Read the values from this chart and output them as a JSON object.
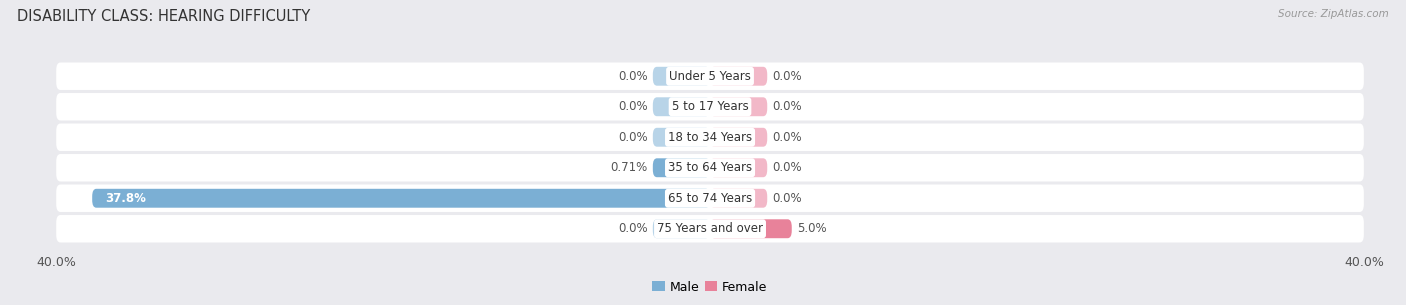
{
  "title": "DISABILITY CLASS: HEARING DIFFICULTY",
  "source": "Source: ZipAtlas.com",
  "categories": [
    "Under 5 Years",
    "5 to 17 Years",
    "18 to 34 Years",
    "35 to 64 Years",
    "65 to 74 Years",
    "75 Years and over"
  ],
  "male_values": [
    0.0,
    0.0,
    0.0,
    0.71,
    37.8,
    0.0
  ],
  "female_values": [
    0.0,
    0.0,
    0.0,
    0.0,
    0.0,
    5.0
  ],
  "male_color": "#7bafd4",
  "female_color": "#e8829a",
  "male_stub_color": "#b8d4e8",
  "female_stub_color": "#f2b8c8",
  "row_bg_color": "#ffffff",
  "outer_bg_color": "#eaeaee",
  "axis_max": 40.0,
  "bar_height": 0.62,
  "stub_size": 3.5,
  "title_fontsize": 10.5,
  "tick_fontsize": 9,
  "label_fontsize": 8.5,
  "category_fontsize": 8.5,
  "value_color": "#555555",
  "category_color": "#333333"
}
